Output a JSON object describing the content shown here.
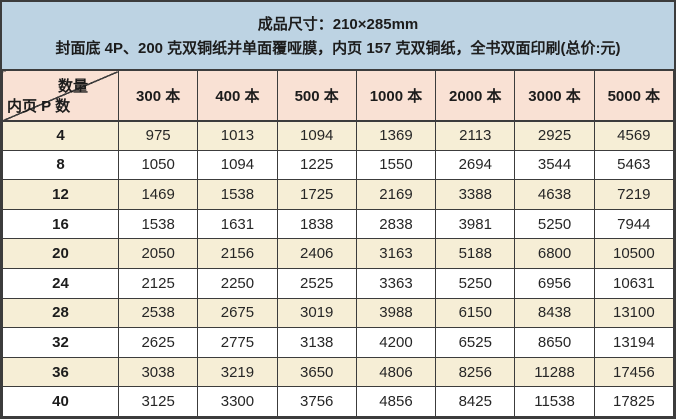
{
  "banner": {
    "line1": "成品尺寸：210×285mm",
    "line2": "封面底 4P、200 克双铜纸并单面覆哑膜，内页 157 克双铜纸，全书双面印刷(总价:元)"
  },
  "table": {
    "corner": {
      "quantity_label": "数量",
      "pages_label": "内页 P 数"
    },
    "columns": [
      "300 本",
      "400 本",
      "500 本",
      "1000 本",
      "2000 本",
      "3000 本",
      "5000 本"
    ],
    "rows": [
      {
        "pages": "4",
        "prices": [
          "975",
          "1013",
          "1094",
          "1369",
          "2113",
          "2925",
          "4569"
        ]
      },
      {
        "pages": "8",
        "prices": [
          "1050",
          "1094",
          "1225",
          "1550",
          "2694",
          "3544",
          "5463"
        ]
      },
      {
        "pages": "12",
        "prices": [
          "1469",
          "1538",
          "1725",
          "2169",
          "3388",
          "4638",
          "7219"
        ]
      },
      {
        "pages": "16",
        "prices": [
          "1538",
          "1631",
          "1838",
          "2838",
          "3981",
          "5250",
          "7944"
        ]
      },
      {
        "pages": "20",
        "prices": [
          "2050",
          "2156",
          "2406",
          "3163",
          "5188",
          "6800",
          "10500"
        ]
      },
      {
        "pages": "24",
        "prices": [
          "2125",
          "2250",
          "2525",
          "3363",
          "5250",
          "6956",
          "10631"
        ]
      },
      {
        "pages": "28",
        "prices": [
          "2538",
          "2675",
          "3019",
          "3988",
          "6150",
          "8438",
          "13100"
        ]
      },
      {
        "pages": "32",
        "prices": [
          "2625",
          "2775",
          "3138",
          "4200",
          "6525",
          "8650",
          "13194"
        ]
      },
      {
        "pages": "36",
        "prices": [
          "3038",
          "3219",
          "3650",
          "4806",
          "8256",
          "11288",
          "17456"
        ]
      },
      {
        "pages": "40",
        "prices": [
          "3125",
          "3300",
          "3756",
          "4856",
          "8425",
          "11538",
          "17825"
        ]
      }
    ]
  },
  "colors": {
    "banner_background": "#bdd3e3",
    "header_background": "#f9e1d4",
    "row_alt_background": "#f6eed6",
    "row_background": "#ffffff",
    "border": "#3c3c3c",
    "text": "#1c1c1c"
  },
  "chart_data": {
    "type": "table",
    "title": "成品尺寸：210×285mm",
    "subtitle": "封面底 4P、200 克双铜纸并单面覆哑膜，内页 157 克双铜纸，全书双面印刷(总价:元)",
    "column_axis_label": "数量",
    "row_axis_label": "内页 P 数",
    "columns": [
      "300 本",
      "400 本",
      "500 本",
      "1000 本",
      "2000 本",
      "3000 本",
      "5000 本"
    ],
    "row_categories": [
      4,
      8,
      12,
      16,
      20,
      24,
      28,
      32,
      36,
      40
    ],
    "series": [
      {
        "name": "300 本",
        "values": [
          975,
          1050,
          1469,
          1538,
          2050,
          2125,
          2538,
          2625,
          3038,
          3125
        ]
      },
      {
        "name": "400 本",
        "values": [
          1013,
          1094,
          1538,
          1631,
          2156,
          2250,
          2675,
          2775,
          3219,
          3300
        ]
      },
      {
        "name": "500 本",
        "values": [
          1094,
          1225,
          1725,
          1838,
          2406,
          2525,
          3019,
          3138,
          3650,
          3756
        ]
      },
      {
        "name": "1000 本",
        "values": [
          1369,
          1550,
          2169,
          2838,
          3163,
          3363,
          3988,
          4200,
          4806,
          4856
        ]
      },
      {
        "name": "2000 本",
        "values": [
          2113,
          2694,
          3388,
          3981,
          5188,
          5250,
          6150,
          6525,
          8256,
          8425
        ]
      },
      {
        "name": "3000 本",
        "values": [
          2925,
          3544,
          4638,
          5250,
          6800,
          6956,
          8438,
          8650,
          11288,
          11538
        ]
      },
      {
        "name": "5000 本",
        "values": [
          4569,
          5463,
          7219,
          7944,
          10500,
          10631,
          13100,
          13194,
          17456,
          17825
        ]
      }
    ]
  }
}
